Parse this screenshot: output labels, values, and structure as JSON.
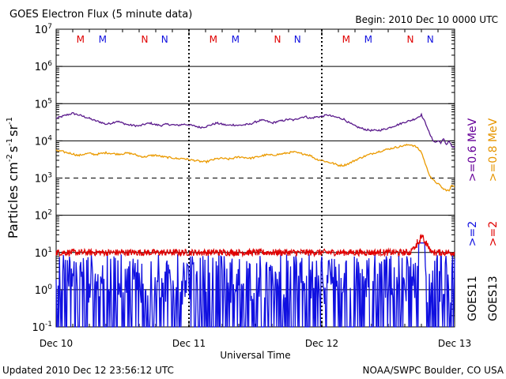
{
  "chart_data": {
    "type": "line",
    "title": "GOES Electron Flux (5 minute data)",
    "begin_label": "Begin: 2010 Dec 10 0000 UTC",
    "xlabel": "Universal Time",
    "ylabel": "Particles cm-2 s-1 sr-1",
    "ylabel_parts": {
      "base": "Particles cm",
      "e1": "-2",
      "mid": "s",
      "e2": "-1",
      "mid2": "sr",
      "e3": "-1"
    },
    "updated_label": "Updated 2010 Dec 12 23:56:12 UTC",
    "credit_label": "NOAA/SWPC Boulder, CO USA",
    "x_tick_labels": [
      "Dec 10",
      "Dec 11",
      "Dec 12",
      "Dec 13"
    ],
    "x_range_hours": [
      0,
      72
    ],
    "y_scale": "log",
    "y_range": [
      0.1,
      10000000
    ],
    "y_tick_labels": [
      {
        "base": "10",
        "exp": "7"
      },
      {
        "base": "10",
        "exp": "6"
      },
      {
        "base": "10",
        "exp": "5"
      },
      {
        "base": "10",
        "exp": "4"
      },
      {
        "base": "10",
        "exp": "3"
      },
      {
        "base": "10",
        "exp": "2"
      },
      {
        "base": "10",
        "exp": "1"
      },
      {
        "base": "10",
        "exp": "0"
      },
      {
        "base": "10",
        "exp": "-1"
      }
    ],
    "alert_threshold": 1000,
    "mn_markers": [
      {
        "label": "M",
        "hour": 4.4,
        "color": "#e00000"
      },
      {
        "label": "M",
        "hour": 8.4,
        "color": "#1010e0"
      },
      {
        "label": "N",
        "hour": 16.0,
        "color": "#e00000"
      },
      {
        "label": "N",
        "hour": 19.6,
        "color": "#1010e0"
      },
      {
        "label": "M",
        "hour": 28.4,
        "color": "#e00000"
      },
      {
        "label": "M",
        "hour": 32.4,
        "color": "#1010e0"
      },
      {
        "label": "N",
        "hour": 40.0,
        "color": "#e00000"
      },
      {
        "label": "N",
        "hour": 43.6,
        "color": "#1010e0"
      },
      {
        "label": "M",
        "hour": 52.4,
        "color": "#e00000"
      },
      {
        "label": "M",
        "hour": 56.4,
        "color": "#1010e0"
      },
      {
        "label": "N",
        "hour": 64.0,
        "color": "#e00000"
      },
      {
        "label": "N",
        "hour": 67.6,
        "color": "#1010e0"
      }
    ],
    "right_legends": [
      {
        "text": ">=0.6 MeV",
        "color": "#660099"
      },
      {
        "text": ">=0.8 MeV",
        "color": "#e69500"
      },
      {
        "text": ">=2",
        "color": "#1010e0"
      },
      {
        "text": ">=2",
        "color": "#e00000"
      },
      {
        "text": "GOES11",
        "color": "#000000"
      },
      {
        "text": "GOES13",
        "color": "#000000"
      }
    ],
    "series": [
      {
        "color": "#5a1a8c",
        "x": [
          0,
          1,
          2,
          3,
          4,
          5,
          6,
          7,
          8,
          9,
          10,
          11,
          12,
          13,
          14,
          15,
          16,
          17,
          18,
          19,
          20,
          21,
          22,
          23,
          24,
          25,
          26,
          27,
          28,
          29,
          30,
          31,
          32,
          33,
          34,
          35,
          36,
          37,
          38,
          39,
          40,
          41,
          42,
          43,
          44,
          45,
          46,
          47,
          48,
          49,
          50,
          51,
          52,
          53,
          54,
          55,
          56,
          57,
          58,
          59,
          60,
          61,
          62,
          63,
          64,
          65,
          66,
          66.5,
          67,
          67.5,
          68,
          68.5,
          69,
          69.5,
          70,
          70.5,
          71,
          71.5,
          72
        ],
        "y": [
          40000,
          45000,
          50000,
          55000,
          50000,
          45000,
          40000,
          35000,
          32000,
          28000,
          30000,
          34000,
          30000,
          27000,
          26000,
          25000,
          28000,
          30000,
          27000,
          26000,
          28000,
          27000,
          26000,
          28000,
          27000,
          25000,
          23000,
          24000,
          27000,
          30000,
          28000,
          26000,
          27000,
          26000,
          27000,
          28000,
          32000,
          36000,
          34000,
          30000,
          33000,
          35000,
          38000,
          36000,
          42000,
          45000,
          40000,
          44000,
          45000,
          50000,
          45000,
          42000,
          38000,
          30000,
          25000,
          22000,
          20000,
          19000,
          19000,
          20000,
          22000,
          25000,
          28000,
          32000,
          35000,
          40000,
          50000,
          35000,
          25000,
          15000,
          11000,
          9000,
          10000,
          9000,
          11000,
          8000,
          10000,
          7000,
          6500
        ]
      },
      {
        "color": "#eb9a00",
        "x": [
          0,
          1,
          2,
          3,
          4,
          5,
          6,
          7,
          8,
          9,
          10,
          11,
          12,
          13,
          14,
          15,
          16,
          17,
          18,
          19,
          20,
          21,
          22,
          23,
          24,
          25,
          26,
          27,
          28,
          29,
          30,
          31,
          32,
          33,
          34,
          35,
          36,
          37,
          38,
          39,
          40,
          41,
          42,
          43,
          44,
          45,
          46,
          47,
          48,
          49,
          50,
          51,
          52,
          53,
          54,
          55,
          56,
          57,
          58,
          59,
          60,
          61,
          62,
          63,
          64,
          65,
          66,
          66.5,
          67,
          67.5,
          68,
          68.5,
          69,
          69.5,
          70,
          70.5,
          71,
          71.5,
          72
        ],
        "y": [
          5500,
          5200,
          4800,
          4500,
          4000,
          4400,
          4600,
          4300,
          4500,
          4800,
          4600,
          4400,
          4500,
          4700,
          4400,
          3900,
          3700,
          4000,
          4100,
          3800,
          3600,
          3500,
          3300,
          3400,
          3100,
          3000,
          2800,
          2700,
          3000,
          3300,
          3400,
          3200,
          3400,
          3700,
          3600,
          3400,
          3600,
          3900,
          4200,
          4100,
          4300,
          4500,
          4800,
          5000,
          4600,
          4400,
          4000,
          3200,
          3000,
          2700,
          2500,
          2200,
          2200,
          2500,
          3000,
          3500,
          4000,
          4500,
          5000,
          5500,
          6000,
          6500,
          7000,
          7500,
          8000,
          7000,
          5000,
          3000,
          1800,
          1200,
          900,
          800,
          700,
          600,
          500,
          480,
          450,
          650,
          600
        ]
      },
      {
        "color": "#e00000",
        "baseline": 10,
        "spike": {
          "hour": 66,
          "value": 30,
          "width_hours": 2
        }
      },
      {
        "color": "#1010e0",
        "baseline": 0.1,
        "peak_range": [
          0.4,
          9
        ],
        "spike": {
          "hour": 66,
          "value": 18,
          "width_hours": 0.6
        }
      }
    ]
  }
}
